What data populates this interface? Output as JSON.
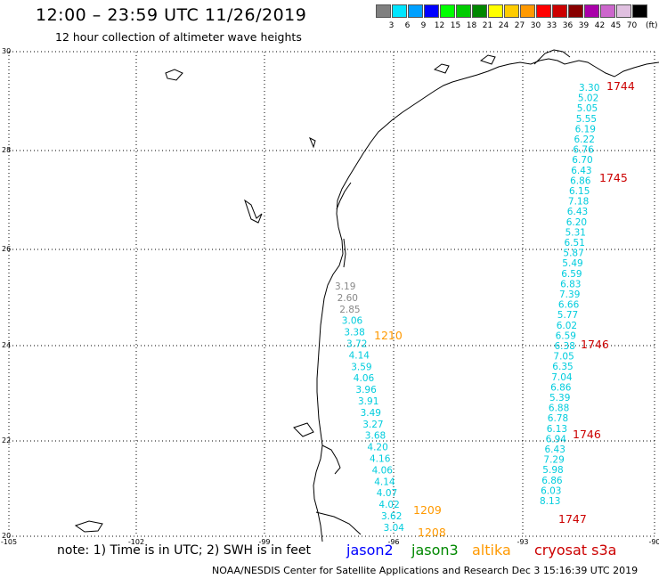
{
  "header": {
    "title": "12:00 – 23:59 UTC 11/26/2019",
    "subtitle": "12 hour collection of altimeter wave heights"
  },
  "legend": {
    "colors": [
      "#808080",
      "#00e5ff",
      "#00a0ff",
      "#0000ff",
      "#00ff00",
      "#00cc00",
      "#008800",
      "#ffff00",
      "#ffcc00",
      "#ff9900",
      "#ff0000",
      "#cc0000",
      "#880000",
      "#aa00aa",
      "#cc66cc",
      "#e0c0e0",
      "#000000"
    ],
    "labels": [
      "3",
      "6",
      "9",
      "12",
      "15",
      "18",
      "21",
      "24",
      "27",
      "30",
      "33",
      "36",
      "39",
      "42",
      "45",
      "70"
    ],
    "unit": "(ft)"
  },
  "axes": {
    "lon_labels": [
      "-105",
      "-102",
      "-99",
      "-96",
      "-93",
      "-90"
    ],
    "lat_labels": [
      "30",
      "28",
      "26",
      "24",
      "22",
      "20"
    ]
  },
  "tracks": [
    {
      "satellite": "cryosat s3a",
      "color": "#00ccdd",
      "time_label": "1744",
      "values": [
        "3.30",
        "5.02",
        "5.05",
        "5.55",
        "6.19",
        "6.22",
        "6.76",
        "6.70",
        "6.43"
      ]
    },
    {
      "satellite": "cryosat s3a",
      "color": "#00ccdd",
      "time_label": "1745",
      "values": [
        "6.86",
        "6.15",
        "7.18",
        "6.43",
        "6.20",
        "5.31",
        "6.51",
        "5.87",
        "5.49",
        "6.59",
        "6.83",
        "7.39",
        "6.66",
        "5.77",
        "6.02"
      ]
    },
    {
      "satellite": "cryosat s3a",
      "color": "#00ccdd",
      "time_label": "1746",
      "values": [
        "6.59",
        "6.38",
        "7.05",
        "6.35",
        "7.04",
        "6.86",
        "5.39",
        "6.88",
        "6.78",
        "6.13",
        "6.94",
        "6.43",
        "7.29",
        "5.98",
        "6.86",
        "6.03",
        "8.13"
      ]
    },
    {
      "satellite": "altika",
      "color": "#00ccdd",
      "time_label": "1210",
      "values": [
        "3.19",
        "2.60",
        "2.85",
        "3.06",
        "3.38",
        "3.72",
        "4.14",
        "3.59",
        "4.06",
        "3.96",
        "3.91",
        "3.49",
        "3.27",
        "3.68",
        "4.20",
        "4.16",
        "4.06",
        "4.14",
        "4.07",
        "4.02",
        "3.62",
        "3.04"
      ]
    }
  ],
  "time_labels": [
    {
      "text": "1744",
      "color": "#cc0000"
    },
    {
      "text": "1745",
      "color": "#cc0000"
    },
    {
      "text": "1746",
      "color": "#cc0000"
    },
    {
      "text": "1746",
      "color": "#cc0000"
    },
    {
      "text": "1747",
      "color": "#cc0000"
    },
    {
      "text": "1210",
      "color": "#ff9900"
    },
    {
      "text": "1209",
      "color": "#ff9900"
    },
    {
      "text": "1208",
      "color": "#ff9900"
    }
  ],
  "footer": {
    "note": "note:  1) Time is in UTC; 2) SWH is in feet",
    "satellites": [
      {
        "name": "jason2",
        "color": "#0000ff"
      },
      {
        "name": "jason3",
        "color": "#008800"
      },
      {
        "name": "altika",
        "color": "#ff9900"
      },
      {
        "name": "cryosat s3a",
        "color": "#cc0000"
      }
    ],
    "credit": "NOAA/NESDIS Center for Satellite Applications and Research     Dec  3 15:16:39 UTC 2019"
  }
}
